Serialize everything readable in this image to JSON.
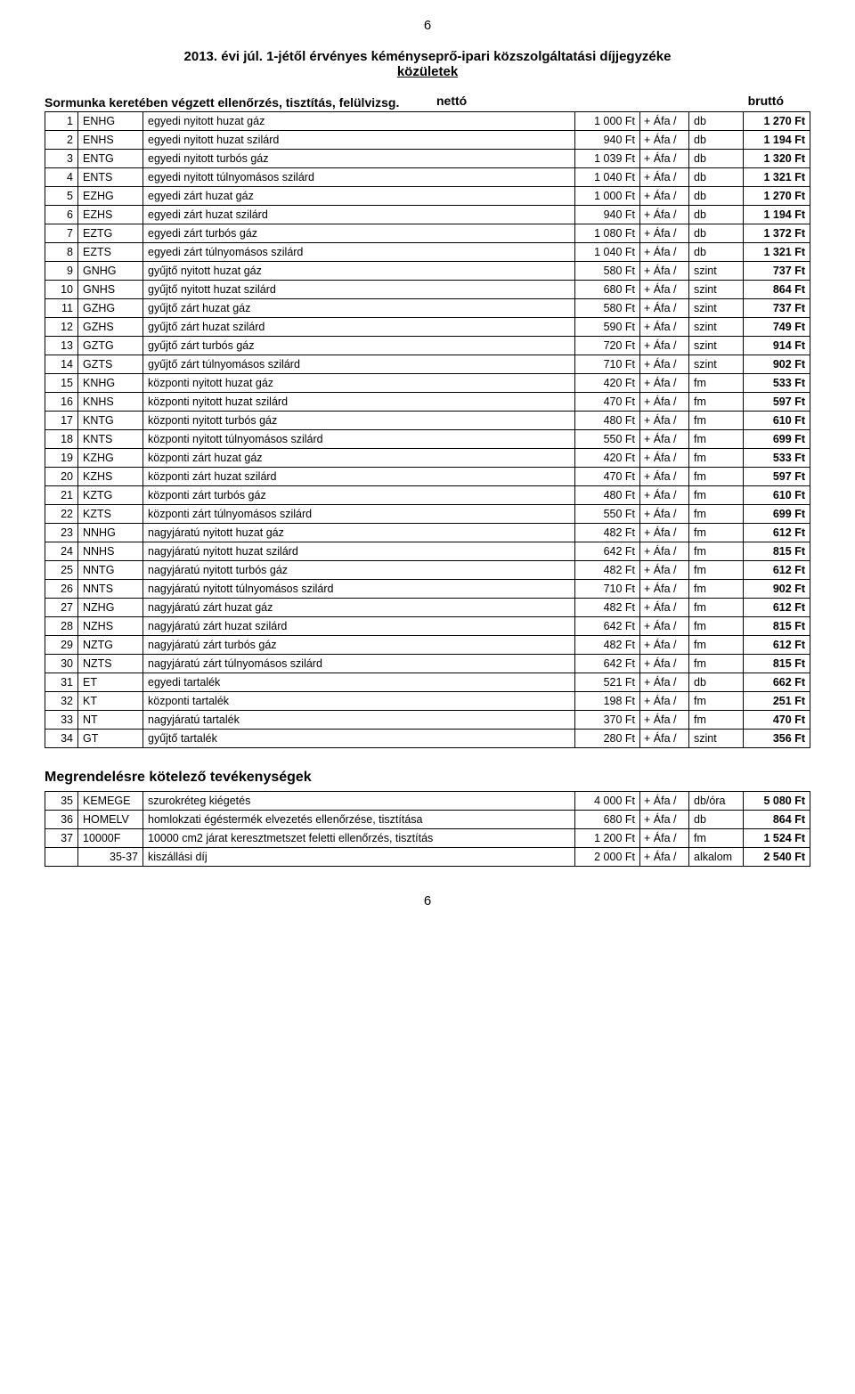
{
  "page_number_top": "6",
  "page_number_bottom": "6",
  "title": "2013. évi júl. 1-jétől érvényes kéményseprő-ipari közszolgáltatási díjjegyzéke",
  "subtitle": "közületek",
  "section1_label": "Sormunka keretében végzett ellenőrzés, tisztítás, felülvizsg.",
  "netto_label": "nettó",
  "brutto_label": "bruttó",
  "afa_text": "+ Áfa /",
  "rows": [
    {
      "n": "1",
      "code": "ENHG",
      "desc": "egyedi nyitott huzat gáz",
      "netto": "1 000 Ft",
      "unit": "db",
      "brutto": "1 270 Ft"
    },
    {
      "n": "2",
      "code": "ENHS",
      "desc": "egyedi nyitott huzat szilárd",
      "netto": "940 Ft",
      "unit": "db",
      "brutto": "1 194 Ft"
    },
    {
      "n": "3",
      "code": "ENTG",
      "desc": "egyedi nyitott turbós gáz",
      "netto": "1 039 Ft",
      "unit": "db",
      "brutto": "1 320 Ft"
    },
    {
      "n": "4",
      "code": "ENTS",
      "desc": "egyedi nyitott túlnyomásos szilárd",
      "netto": "1 040 Ft",
      "unit": "db",
      "brutto": "1 321 Ft"
    },
    {
      "n": "5",
      "code": "EZHG",
      "desc": "egyedi zárt huzat gáz",
      "netto": "1 000 Ft",
      "unit": "db",
      "brutto": "1 270 Ft"
    },
    {
      "n": "6",
      "code": "EZHS",
      "desc": "egyedi zárt huzat szilárd",
      "netto": "940 Ft",
      "unit": "db",
      "brutto": "1 194 Ft"
    },
    {
      "n": "7",
      "code": "EZTG",
      "desc": "egyedi zárt turbós gáz",
      "netto": "1 080 Ft",
      "unit": "db",
      "brutto": "1 372 Ft"
    },
    {
      "n": "8",
      "code": "EZTS",
      "desc": "egyedi zárt túlnyomásos szilárd",
      "netto": "1 040 Ft",
      "unit": "db",
      "brutto": "1 321 Ft"
    },
    {
      "n": "9",
      "code": "GNHG",
      "desc": "gyűjtő nyitott huzat gáz",
      "netto": "580 Ft",
      "unit": "szint",
      "brutto": "737 Ft"
    },
    {
      "n": "10",
      "code": "GNHS",
      "desc": "gyűjtő nyitott huzat szilárd",
      "netto": "680 Ft",
      "unit": "szint",
      "brutto": "864 Ft"
    },
    {
      "n": "11",
      "code": "GZHG",
      "desc": "gyűjtő zárt huzat gáz",
      "netto": "580 Ft",
      "unit": "szint",
      "brutto": "737 Ft"
    },
    {
      "n": "12",
      "code": "GZHS",
      "desc": "gyűjtő zárt huzat szilárd",
      "netto": "590 Ft",
      "unit": "szint",
      "brutto": "749 Ft"
    },
    {
      "n": "13",
      "code": "GZTG",
      "desc": "gyűjtő zárt turbós gáz",
      "netto": "720 Ft",
      "unit": "szint",
      "brutto": "914 Ft"
    },
    {
      "n": "14",
      "code": "GZTS",
      "desc": "gyűjtő zárt túlnyomásos szilárd",
      "netto": "710 Ft",
      "unit": "szint",
      "brutto": "902 Ft"
    },
    {
      "n": "15",
      "code": "KNHG",
      "desc": "központi nyitott huzat gáz",
      "netto": "420 Ft",
      "unit": "fm",
      "brutto": "533 Ft"
    },
    {
      "n": "16",
      "code": "KNHS",
      "desc": "központi nyitott huzat szilárd",
      "netto": "470 Ft",
      "unit": "fm",
      "brutto": "597 Ft"
    },
    {
      "n": "17",
      "code": "KNTG",
      "desc": "központi nyitott turbós gáz",
      "netto": "480 Ft",
      "unit": "fm",
      "brutto": "610 Ft"
    },
    {
      "n": "18",
      "code": "KNTS",
      "desc": "központi nyitott túlnyomásos szilárd",
      "netto": "550 Ft",
      "unit": "fm",
      "brutto": "699 Ft"
    },
    {
      "n": "19",
      "code": "KZHG",
      "desc": "központi zárt huzat gáz",
      "netto": "420 Ft",
      "unit": "fm",
      "brutto": "533 Ft"
    },
    {
      "n": "20",
      "code": "KZHS",
      "desc": "központi zárt huzat szilárd",
      "netto": "470 Ft",
      "unit": "fm",
      "brutto": "597 Ft"
    },
    {
      "n": "21",
      "code": "KZTG",
      "desc": "központi zárt turbós gáz",
      "netto": "480 Ft",
      "unit": "fm",
      "brutto": "610 Ft"
    },
    {
      "n": "22",
      "code": "KZTS",
      "desc": "központi zárt túlnyomásos szilárd",
      "netto": "550 Ft",
      "unit": "fm",
      "brutto": "699 Ft"
    },
    {
      "n": "23",
      "code": "NNHG",
      "desc": "nagyjáratú nyitott huzat gáz",
      "netto": "482 Ft",
      "unit": "fm",
      "brutto": "612 Ft"
    },
    {
      "n": "24",
      "code": "NNHS",
      "desc": "nagyjáratú nyitott huzat szilárd",
      "netto": "642 Ft",
      "unit": "fm",
      "brutto": "815 Ft"
    },
    {
      "n": "25",
      "code": "NNTG",
      "desc": "nagyjáratú nyitott turbós gáz",
      "netto": "482 Ft",
      "unit": "fm",
      "brutto": "612 Ft"
    },
    {
      "n": "26",
      "code": "NNTS",
      "desc": "nagyjáratú nyitott túlnyomásos szilárd",
      "netto": "710 Ft",
      "unit": "fm",
      "brutto": "902 Ft"
    },
    {
      "n": "27",
      "code": "NZHG",
      "desc": "nagyjáratú zárt huzat gáz",
      "netto": "482 Ft",
      "unit": "fm",
      "brutto": "612 Ft"
    },
    {
      "n": "28",
      "code": "NZHS",
      "desc": "nagyjáratú zárt huzat szilárd",
      "netto": "642 Ft",
      "unit": "fm",
      "brutto": "815 Ft"
    },
    {
      "n": "29",
      "code": "NZTG",
      "desc": "nagyjáratú zárt turbós gáz",
      "netto": "482 Ft",
      "unit": "fm",
      "brutto": "612 Ft"
    },
    {
      "n": "30",
      "code": "NZTS",
      "desc": "nagyjáratú zárt túlnyomásos szilárd",
      "netto": "642 Ft",
      "unit": "fm",
      "brutto": "815 Ft"
    },
    {
      "n": "31",
      "code": "ET",
      "desc": "egyedi tartalék",
      "netto": "521 Ft",
      "unit": "db",
      "brutto": "662 Ft"
    },
    {
      "n": "32",
      "code": "KT",
      "desc": "központi tartalék",
      "netto": "198 Ft",
      "unit": "fm",
      "brutto": "251 Ft"
    },
    {
      "n": "33",
      "code": "NT",
      "desc": "nagyjáratú tartalék",
      "netto": "370 Ft",
      "unit": "fm",
      "brutto": "470 Ft"
    },
    {
      "n": "34",
      "code": "GT",
      "desc": "gyűjtő tartalék",
      "netto": "280 Ft",
      "unit": "szint",
      "brutto": "356 Ft"
    }
  ],
  "section2_title": "Megrendelésre kötelező tevékenységek",
  "rows2": [
    {
      "n": "35",
      "code": "KEMEGE",
      "desc": "szurokréteg kiégetés",
      "netto": "4 000 Ft",
      "unit": "db/óra",
      "brutto": "5 080 Ft"
    },
    {
      "n": "36",
      "code": "HOMELV",
      "desc": "homlokzati égéstermék elvezetés ellenőrzése, tisztítása",
      "netto": "680 Ft",
      "unit": "db",
      "brutto": "864 Ft"
    },
    {
      "n": "37",
      "code": "10000F",
      "desc": "10000 cm2 járat keresztmetszet feletti ellenőrzés, tisztítás",
      "netto": "1 200 Ft",
      "unit": "fm",
      "brutto": "1 524 Ft"
    },
    {
      "n": "",
      "code": "35-37",
      "desc": "kiszállási díj",
      "netto": "2 000 Ft",
      "unit": "alkalom",
      "brutto": "2 540 Ft"
    }
  ]
}
